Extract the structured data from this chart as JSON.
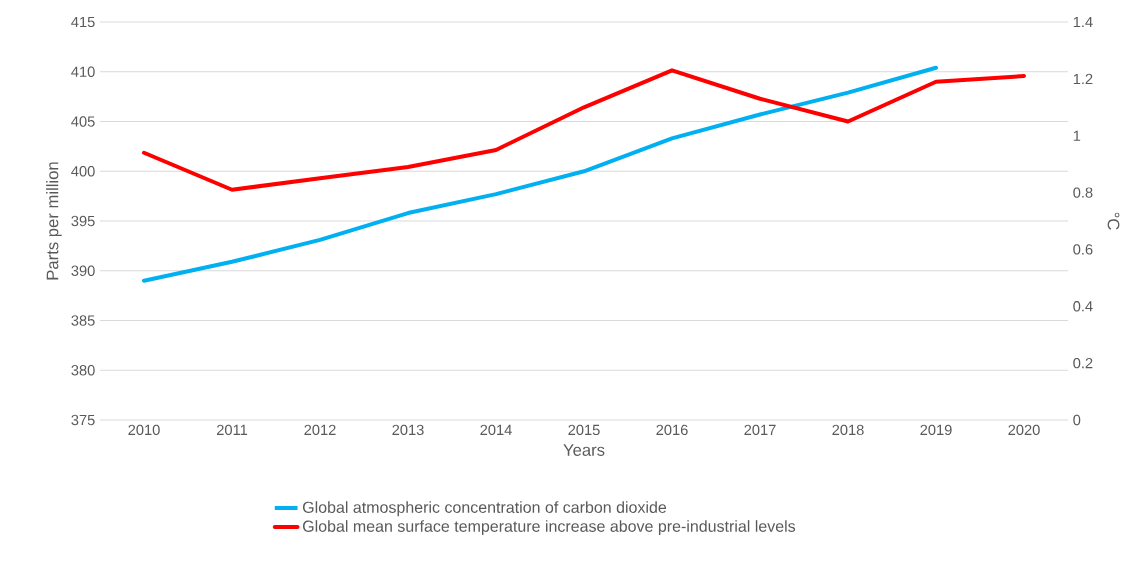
{
  "chart_data": {
    "type": "line",
    "xlabel": "Years",
    "ylabel": "Parts per million",
    "y2label": "°C",
    "categories": [
      "2010",
      "2011",
      "2012",
      "2013",
      "2014",
      "2015",
      "2016",
      "2017",
      "2018",
      "2019",
      "2020"
    ],
    "series": [
      {
        "name": "Global atmospheric concentration of carbon dioxide",
        "color": "#00b0f0",
        "values": [
          389.0,
          390.9,
          393.1,
          395.8,
          397.7,
          400.0,
          403.3,
          405.7,
          407.9,
          410.4,
          null
        ]
      },
      {
        "name": "Global mean surface temperature increase above pre-industrial levels",
        "color": "#ff0000",
        "axis": "y2",
        "values": [
          0.94,
          0.81,
          0.85,
          0.89,
          0.95,
          1.1,
          1.23,
          1.13,
          1.05,
          1.19,
          1.21
        ]
      }
    ],
    "ylim": [
      375,
      415
    ],
    "yticks": [
      375,
      380,
      385,
      390,
      395,
      400,
      405,
      410,
      415
    ],
    "y2lim": [
      0,
      1.4
    ],
    "y2ticks": [
      0,
      0.2,
      0.4,
      0.6,
      0.8,
      1,
      1.2,
      1.4
    ],
    "grid": "y",
    "legend": "bottom",
    "line_style": "solid"
  }
}
